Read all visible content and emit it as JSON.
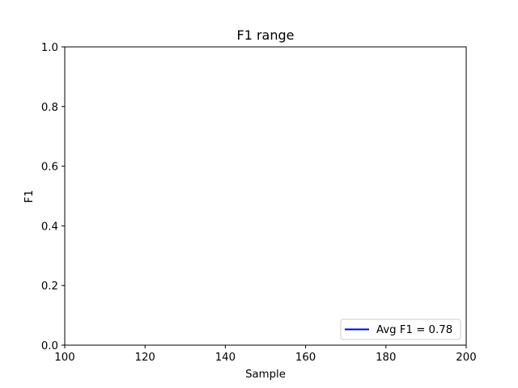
{
  "chart_data": {
    "type": "line",
    "title": "F1 range",
    "xlabel": "Sample",
    "ylabel": "F1",
    "xlim": [
      100,
      200
    ],
    "ylim": [
      0.0,
      1.0
    ],
    "x_ticks": [
      100,
      120,
      140,
      160,
      180,
      200
    ],
    "y_ticks": [
      0.0,
      0.2,
      0.4,
      0.6,
      0.8,
      1.0
    ],
    "x_tick_labels": [
      "100",
      "120",
      "140",
      "160",
      "180",
      "200"
    ],
    "y_tick_labels": [
      "0.0",
      "0.2",
      "0.4",
      "0.6",
      "0.8",
      "1.0"
    ],
    "grid": false,
    "legend_position": "lower-right",
    "series": [
      {
        "name": "Avg F1 = 0.78",
        "color": "#0000cc",
        "x": [],
        "y": []
      }
    ]
  }
}
